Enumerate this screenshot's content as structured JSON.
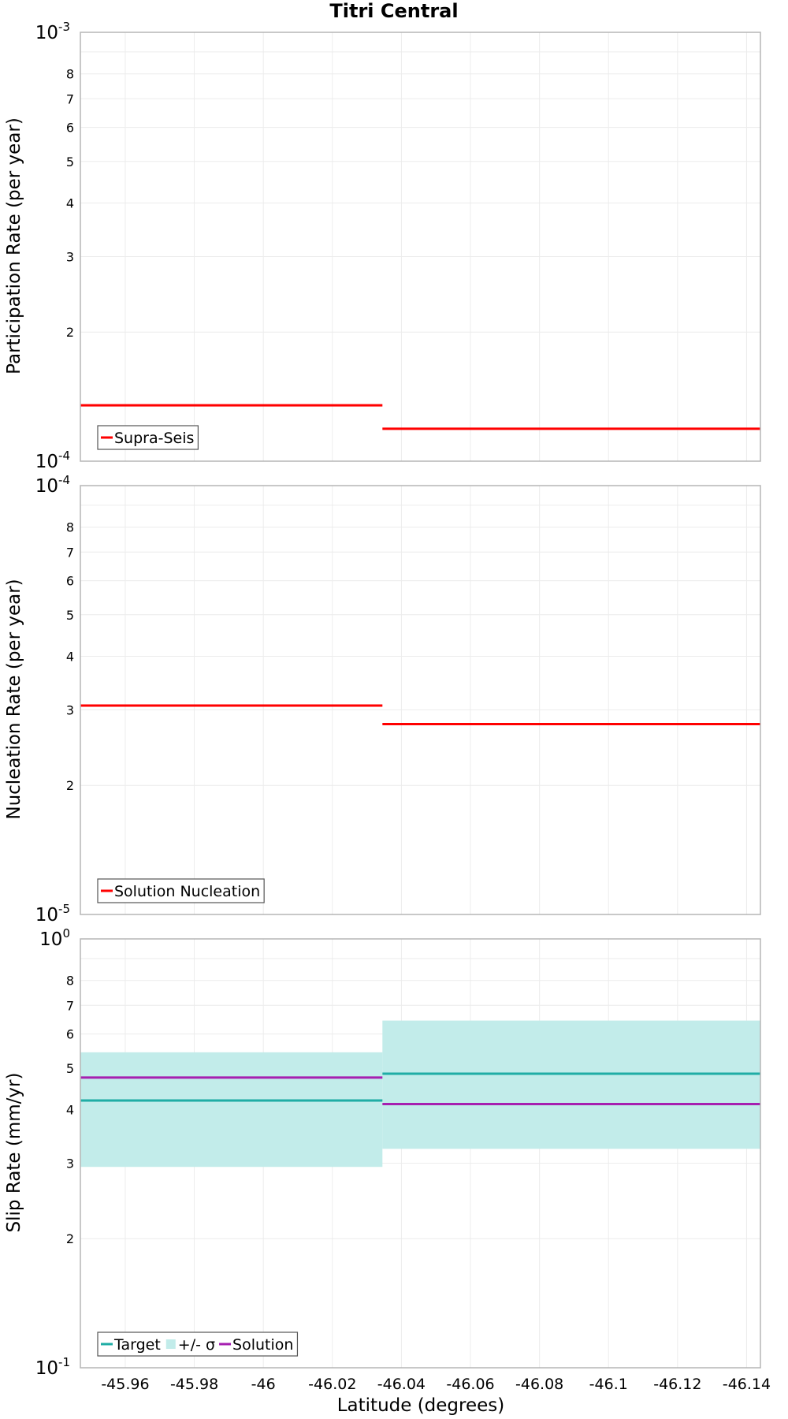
{
  "chart_data": {
    "title": "Titri Central",
    "xlabel": "Latitude (degrees)",
    "xlim": [
      -45.947,
      -46.144
    ],
    "xticks": [
      -45.96,
      -45.98,
      -46,
      -46.02,
      -46.04,
      -46.06,
      -46.08,
      -46.1,
      -46.12,
      -46.14
    ],
    "xtick_labels": [
      "-45.96",
      "-45.98",
      "-46",
      "-46.02",
      "-46.04",
      "-46.06",
      "-46.08",
      "-46.1",
      "-46.12",
      "-46.14"
    ],
    "panels": [
      {
        "type": "line",
        "ylabel": "Participation Rate (per year)",
        "yscale": "log",
        "ylim": [
          0.0001,
          0.001
        ],
        "decade_labels": [
          {
            "base": "10",
            "exp": "-3"
          },
          {
            "base": "10",
            "exp": "-4"
          }
        ],
        "minor_ticks": [
          8,
          7,
          6,
          5,
          4,
          3,
          2
        ],
        "minor_tick_labels": [
          "8",
          "7",
          "6",
          "5",
          "4",
          "3",
          "2"
        ],
        "bands": [],
        "series": [
          {
            "name": "Supra-Seis",
            "color": "#ff0000",
            "segments": [
              {
                "x0": -45.947,
                "x1": -46.0345,
                "y": 0.000135
              },
              {
                "x0": -46.0345,
                "x1": -46.144,
                "y": 0.000119
              }
            ]
          }
        ],
        "legend": [
          {
            "label": "Supra-Seis",
            "kind": "line",
            "color": "#ff0000"
          }
        ]
      },
      {
        "type": "line",
        "ylabel": "Nucleation Rate (per year)",
        "yscale": "log",
        "ylim": [
          1e-05,
          0.0001
        ],
        "decade_labels": [
          {
            "base": "10",
            "exp": "-4"
          },
          {
            "base": "10",
            "exp": "-5"
          }
        ],
        "minor_ticks": [
          8,
          7,
          6,
          5,
          4,
          3,
          2
        ],
        "minor_tick_labels": [
          "8",
          "7",
          "6",
          "5",
          "4",
          "3",
          "2"
        ],
        "bands": [],
        "series": [
          {
            "name": "Solution Nucleation",
            "color": "#ff0000",
            "segments": [
              {
                "x0": -45.947,
                "x1": -46.0345,
                "y": 3.07e-05
              },
              {
                "x0": -46.0345,
                "x1": -46.144,
                "y": 2.78e-05
              }
            ]
          }
        ],
        "legend": [
          {
            "label": "Solution Nucleation",
            "kind": "line",
            "color": "#ff0000"
          }
        ]
      },
      {
        "type": "line",
        "ylabel": "Slip Rate (mm/yr)",
        "yscale": "log",
        "ylim": [
          0.1,
          1
        ],
        "decade_labels": [
          {
            "base": "10",
            "exp": "0"
          },
          {
            "base": "10",
            "exp": "-1"
          }
        ],
        "minor_ticks": [
          8,
          7,
          6,
          5,
          4,
          3,
          2
        ],
        "minor_tick_labels": [
          "8",
          "7",
          "6",
          "5",
          "4",
          "3",
          "2"
        ],
        "bands": [
          {
            "name": "+/- σ",
            "color": "#c2ecea",
            "segments": [
              {
                "x0": -45.947,
                "x1": -46.0345,
                "y0": 0.294,
                "y1": 0.544
              },
              {
                "x0": -46.0345,
                "x1": -46.144,
                "y0": 0.324,
                "y1": 0.645
              }
            ]
          }
        ],
        "series": [
          {
            "name": "Target",
            "color": "#1fada5",
            "segments": [
              {
                "x0": -45.947,
                "x1": -46.0345,
                "y": 0.42
              },
              {
                "x0": -46.0345,
                "x1": -46.144,
                "y": 0.485
              }
            ]
          },
          {
            "name": "Solution",
            "color": "#a61fb0",
            "segments": [
              {
                "x0": -45.947,
                "x1": -46.0345,
                "y": 0.475
              },
              {
                "x0": -46.0345,
                "x1": -46.144,
                "y": 0.412
              }
            ]
          }
        ],
        "legend": [
          {
            "label": "Target",
            "kind": "line",
            "color": "#1fada5"
          },
          {
            "label": "+/- σ",
            "kind": "box",
            "color": "#c2ecea"
          },
          {
            "label": "Solution",
            "kind": "line",
            "color": "#a61fb0"
          }
        ]
      }
    ]
  }
}
